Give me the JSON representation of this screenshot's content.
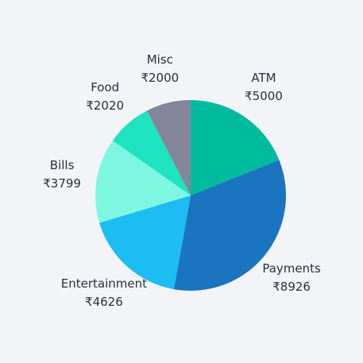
{
  "chart_data": {
    "type": "pie",
    "title": "",
    "currency_symbol": "₹",
    "slices": [
      {
        "name": "ATM",
        "value": 5000,
        "display_value": "₹5000",
        "color": "#00bb9e"
      },
      {
        "name": "Payments",
        "value": 8926,
        "display_value": "₹8926",
        "color": "#1b74bf"
      },
      {
        "name": "Entertainment",
        "value": 4626,
        "display_value": "₹4626",
        "color": "#1bbdf2"
      },
      {
        "name": "Bills",
        "value": 3799,
        "display_value": "₹3799",
        "color": "#7ef7e2"
      },
      {
        "name": "Food",
        "value": 2020,
        "display_value": "₹2020",
        "color": "#1ee3c1"
      },
      {
        "name": "Misc",
        "value": 2000,
        "display_value": "₹2000",
        "color": "#84849b"
      }
    ],
    "start_angle": "12 o'clock",
    "direction": "clockwise",
    "legend": "none"
  }
}
